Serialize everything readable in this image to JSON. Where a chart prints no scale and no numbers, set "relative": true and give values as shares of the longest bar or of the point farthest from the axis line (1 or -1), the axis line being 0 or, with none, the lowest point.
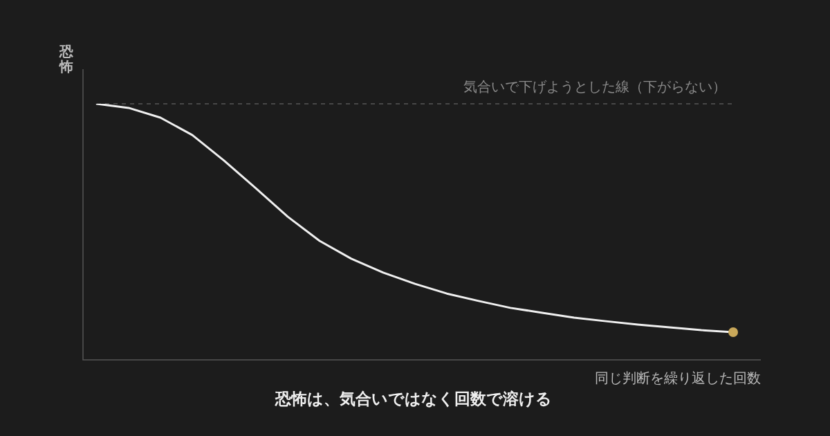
{
  "chart_data": {
    "type": "line",
    "relative": true,
    "title": "恐怖は、気合いではなく回数で溶ける",
    "xlabel": "同じ判断を繰り返した回数",
    "ylabel": "恐怖",
    "categories": [
      null,
      null,
      null,
      null,
      null,
      null,
      null,
      null,
      null,
      null,
      null,
      null,
      null,
      null,
      null,
      null,
      null,
      null,
      null,
      null,
      null
    ],
    "series": [
      {
        "color": "#f0f0f0",
        "marker": "none",
        "values": [
          1,
          0.984,
          0.946,
          0.878,
          0.778,
          0.67,
          0.559,
          0.465,
          0.395,
          0.341,
          0.297,
          0.259,
          0.23,
          0.203,
          0.184,
          0.165,
          0.151,
          0.138,
          0.127,
          0.116,
          0.108
        ]
      }
    ],
    "ref_lines": [
      {
        "axis": "y",
        "value": 1,
        "label": "気合いで下げようとした線（下がらない）",
        "color": "#555555",
        "line_style": "dashed"
      }
    ],
    "grid": false,
    "legend": false
  }
}
